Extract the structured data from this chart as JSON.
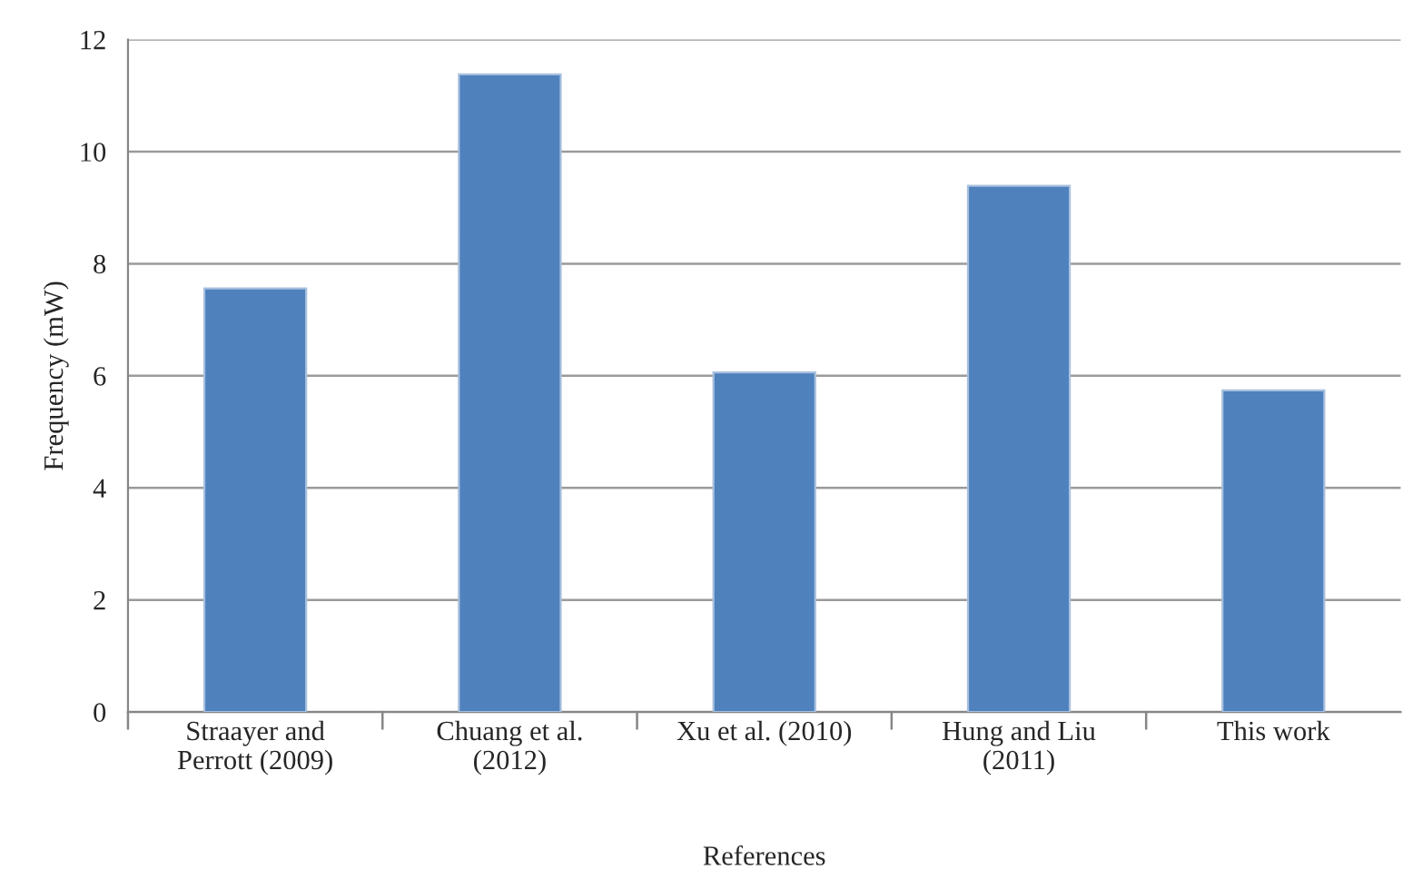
{
  "chart_data": {
    "type": "bar",
    "xlabel": "References",
    "ylabel": "Frequency (mW)",
    "categories": [
      "Straayer and\nPerrott (2009)",
      "Chuang et al.\n(2012)",
      "Xu et al. (2010)",
      "Hung and Liu\n(2011)",
      "This work"
    ],
    "values": [
      7.56,
      11.38,
      6.06,
      9.39,
      5.74
    ],
    "color": "#4f81bd",
    "ylim": [
      0,
      12
    ],
    "yticks": [
      0,
      2,
      4,
      6,
      8,
      10,
      12
    ],
    "grid": "y"
  }
}
